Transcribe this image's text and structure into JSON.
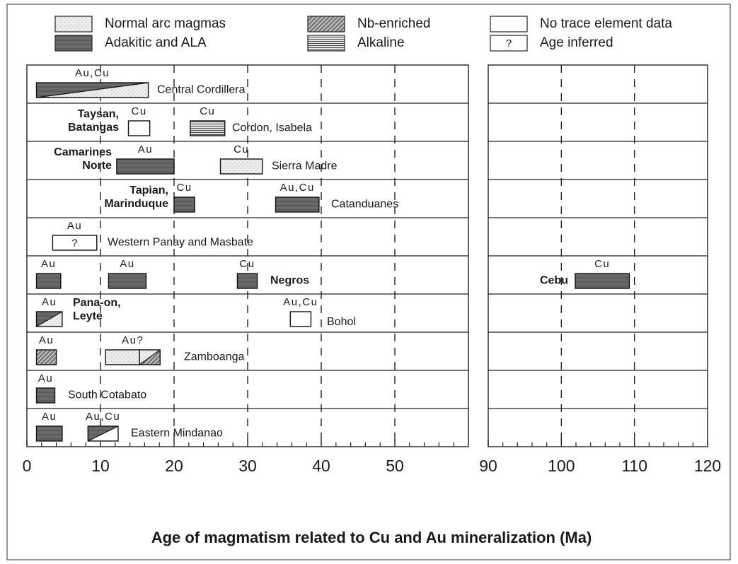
{
  "chart_data": {
    "type": "range",
    "xlabel": "Age of magmatism related to Cu and Au mineralization (Ma)",
    "legend": [
      {
        "name": "Normal arc magmas",
        "pattern": "stipple",
        "color": "#c8c8c8"
      },
      {
        "name": "Nb-enriched",
        "pattern": "hatch",
        "color": "#7a7a7a"
      },
      {
        "name": "No trace element data",
        "pattern": "none",
        "color": "#ffffff"
      },
      {
        "name": "Adakitic and ALA",
        "pattern": "solid",
        "color": "#6a6a6a"
      },
      {
        "name": "Alkaline",
        "pattern": "lines",
        "color": "#4a4a4a"
      },
      {
        "name": "Age inferred",
        "pattern": "none",
        "color": "#ffffff",
        "marker": "?"
      }
    ],
    "panels": [
      {
        "xlim": [
          0,
          60
        ],
        "xticks": [
          0,
          10,
          20,
          30,
          40,
          50
        ],
        "grid": [
          10,
          20,
          30,
          40,
          50
        ],
        "minor_ticks": [
          2,
          4,
          6,
          8,
          12,
          14,
          16,
          18,
          22,
          24,
          26,
          28,
          32,
          34,
          36,
          38,
          42,
          44,
          46,
          48,
          52,
          54,
          56,
          58
        ]
      },
      {
        "xlim": [
          90,
          120
        ],
        "xticks": [
          90,
          100,
          110,
          120
        ],
        "grid": [
          100,
          110
        ],
        "minor_ticks": [
          92,
          94,
          96,
          98,
          102,
          104,
          106,
          108,
          112,
          114,
          116,
          118
        ]
      }
    ],
    "rows": [
      {
        "groups": [
          {
            "name": [
              "Central Cordillera"
            ],
            "bars": [
              {
                "start": 1.3,
                "end": 16.5,
                "metal": "Au,Cu",
                "type": [
                  "Adakitic and ALA",
                  "Normal arc magmas"
                ]
              }
            ]
          }
        ]
      },
      {
        "groups": [
          {
            "name": [
              "Taysan,",
              "Batangas"
            ],
            "bars": [
              {
                "start": 13.8,
                "end": 16.7,
                "metal": "Cu",
                "type": "No trace element data"
              }
            ]
          },
          {
            "name": [
              "Cordon, Isabela"
            ],
            "bars": [
              {
                "start": 22.2,
                "end": 26.9,
                "metal": "Cu",
                "type": "Alkaline"
              }
            ]
          }
        ]
      },
      {
        "groups": [
          {
            "name": [
              "Camarines",
              "Norte"
            ],
            "bars": [
              {
                "start": 12.2,
                "end": 20,
                "metal": "Au",
                "type": "Adakitic and ALA"
              }
            ]
          },
          {
            "name": [
              "Sierra Madre"
            ],
            "bars": [
              {
                "start": 26.3,
                "end": 32,
                "metal": "Cu",
                "type": "Normal arc magmas"
              }
            ]
          }
        ]
      },
      {
        "groups": [
          {
            "name": [
              "Tapian,",
              "Marinduque"
            ],
            "bars": [
              {
                "start": 20,
                "end": 22.8,
                "metal": "Cu",
                "type": "Adakitic and ALA"
              }
            ]
          },
          {
            "name": [
              "Catanduanes"
            ],
            "bars": [
              {
                "start": 33.8,
                "end": 39.7,
                "metal": "Au,Cu",
                "type": "Adakitic and ALA"
              }
            ]
          }
        ]
      },
      {
        "groups": [
          {
            "name": [
              "Western Panay and Masbate"
            ],
            "bars": [
              {
                "start": 3.5,
                "end": 9.5,
                "metal": "Au",
                "type": "Age inferred",
                "marker": "?"
              }
            ]
          }
        ]
      },
      {
        "groups": [
          {
            "name": [
              "Negros"
            ],
            "bars": [
              {
                "start": 1.3,
                "end": 4.6,
                "metal": "Au",
                "type": "Adakitic and ALA"
              },
              {
                "start": 11.1,
                "end": 16.2,
                "metal": "Au",
                "type": "Adakitic and ALA"
              },
              {
                "start": 28.6,
                "end": 31.3,
                "metal": "Cu",
                "type": "Adakitic and ALA"
              }
            ]
          },
          {
            "name": [
              "Cebu"
            ],
            "bars": [
              {
                "start": 101.9,
                "end": 109.3,
                "metal": "Cu",
                "type": "Adakitic and ALA"
              }
            ]
          }
        ]
      },
      {
        "groups": [
          {
            "name": [
              "Pana-on,",
              "Leyte"
            ],
            "bars": [
              {
                "start": 1.3,
                "end": 4.8,
                "metal": "Au",
                "type": [
                  "Adakitic and ALA",
                  "Normal arc magmas"
                ]
              }
            ]
          },
          {
            "name": [
              "Bohol"
            ],
            "bars": [
              {
                "start": 35.8,
                "end": 38.6,
                "metal": "Au,Cu",
                "type": "No trace element data"
              }
            ]
          }
        ]
      },
      {
        "groups": [
          {
            "name": [
              "Zamboanga"
            ],
            "bars": [
              {
                "start": 1.3,
                "end": 4.0,
                "metal": "Au",
                "type": "Nb-enriched"
              },
              {
                "start": 10.7,
                "end": 15.3,
                "metal": "Au?",
                "type": "Normal arc magmas"
              },
              {
                "start": 15.3,
                "end": 18.1,
                "type": [
                  "Normal arc magmas",
                  "Nb-enriched"
                ]
              }
            ]
          }
        ]
      },
      {
        "groups": [
          {
            "name": [
              "South Cotabato"
            ],
            "bars": [
              {
                "start": 1.3,
                "end": 3.8,
                "metal": "Au",
                "type": "Adakitic and ALA"
              }
            ]
          }
        ]
      },
      {
        "groups": [
          {
            "name": [
              "Eastern Mindanao"
            ],
            "bars": [
              {
                "start": 1.3,
                "end": 4.8,
                "metal": "Au",
                "type": "Adakitic and ALA"
              },
              {
                "start": 8.3,
                "end": 12.4,
                "metal": "Au,Cu",
                "type": [
                  "Adakitic and ALA",
                  "No trace element data"
                ]
              }
            ]
          }
        ]
      }
    ]
  }
}
